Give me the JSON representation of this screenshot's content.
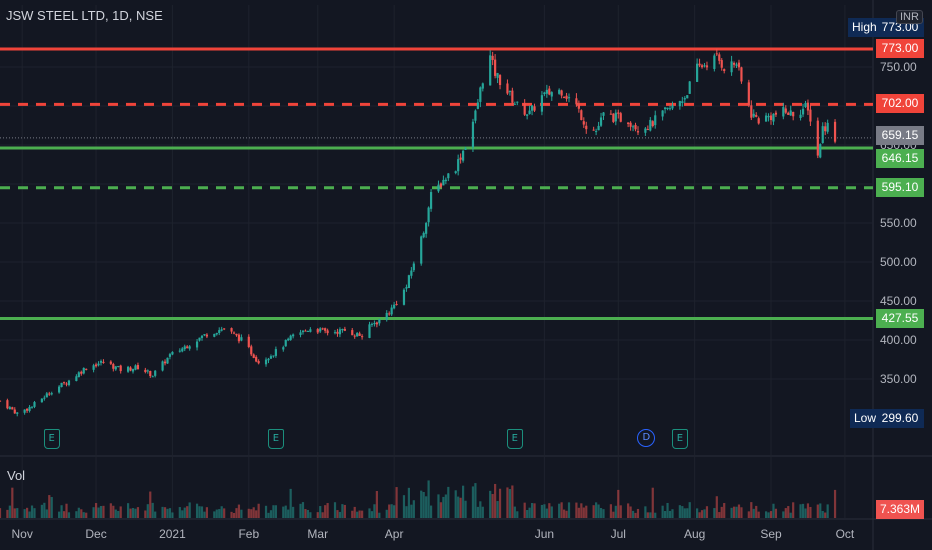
{
  "header": {
    "title": "JSW STEEL LTD, 1D, NSE",
    "currency": "INR"
  },
  "volume_pane": {
    "label": "Vol"
  },
  "levels": [
    {
      "value": 773.0,
      "label": "773.00",
      "color": "#f0443a",
      "style": "solid"
    },
    {
      "value": 702.0,
      "label": "702.00",
      "color": "#f0443a",
      "style": "dashed"
    },
    {
      "value": 646.15,
      "label": "646.15",
      "color": "#4caf50",
      "style": "solid"
    },
    {
      "value": 595.1,
      "label": "595.10",
      "color": "#4caf50",
      "style": "dashed"
    },
    {
      "value": 427.55,
      "label": "427.55",
      "color": "#4caf50",
      "style": "solid"
    }
  ],
  "markers": {
    "high_label": "High",
    "high_value": "773.00",
    "low_label": "Low",
    "low_value": "299.60",
    "last_price": "659.15",
    "last_volume": "7.363M"
  },
  "events": [
    {
      "type": "E",
      "date": "2020-11-13"
    },
    {
      "type": "E",
      "date": "2021-02-12"
    },
    {
      "type": "E",
      "date": "2021-05-20"
    },
    {
      "type": "D",
      "date": "2021-07-12"
    },
    {
      "type": "E",
      "date": "2021-07-26"
    }
  ],
  "colors": {
    "background": "#131722",
    "up": "#26a69a",
    "down": "#ef5350",
    "grid": "#1e222d",
    "high_low_bg": "#0f2a55"
  },
  "chart_data": {
    "type": "candlestick",
    "title": "JSW STEEL LTD, 1D, NSE",
    "x_range": [
      "2020-10-23",
      "2021-10-12"
    ],
    "ylim": [
      300,
      773
    ],
    "y_ticks": [
      350,
      400,
      450,
      500,
      550,
      600,
      650,
      700,
      750
    ],
    "y_tick_labels": [
      "350.00",
      "400.00",
      "450.00",
      "500.00",
      "550.00",
      "600.00",
      "650.00",
      "700.00",
      "750.00"
    ],
    "x_ticks": [
      {
        "date": "2020-11-01",
        "label": "Nov"
      },
      {
        "date": "2020-12-01",
        "label": "Dec"
      },
      {
        "date": "2021-01-01",
        "label": "2021"
      },
      {
        "date": "2021-02-01",
        "label": "Feb"
      },
      {
        "date": "2021-03-01",
        "label": "Mar"
      },
      {
        "date": "2021-04-01",
        "label": "Apr"
      },
      {
        "date": "2021-06-01",
        "label": "Jun"
      },
      {
        "date": "2021-07-01",
        "label": "Jul"
      },
      {
        "date": "2021-08-01",
        "label": "Aug"
      },
      {
        "date": "2021-09-01",
        "label": "Sep"
      },
      {
        "date": "2021-10-01",
        "label": "Oct"
      }
    ],
    "price_path": [
      [
        "2020-10-23",
        322
      ],
      [
        "2020-10-30",
        306
      ],
      [
        "2020-11-05",
        315
      ],
      [
        "2020-11-13",
        335
      ],
      [
        "2020-11-20",
        348
      ],
      [
        "2020-11-27",
        365
      ],
      [
        "2020-12-04",
        372
      ],
      [
        "2020-12-11",
        362
      ],
      [
        "2020-12-18",
        365
      ],
      [
        "2020-12-24",
        355
      ],
      [
        "2020-12-31",
        380
      ],
      [
        "2021-01-08",
        395
      ],
      [
        "2021-01-15",
        408
      ],
      [
        "2021-01-22",
        415
      ],
      [
        "2021-01-29",
        400
      ],
      [
        "2021-02-05",
        372
      ],
      [
        "2021-02-12",
        385
      ],
      [
        "2021-02-19",
        405
      ],
      [
        "2021-02-26",
        415
      ],
      [
        "2021-03-05",
        410
      ],
      [
        "2021-03-12",
        412
      ],
      [
        "2021-03-19",
        405
      ],
      [
        "2021-03-23",
        420
      ],
      [
        "2021-03-26",
        425
      ],
      [
        "2021-03-31",
        440
      ],
      [
        "2021-04-06",
        468
      ],
      [
        "2021-04-09",
        500
      ],
      [
        "2021-04-13",
        540
      ],
      [
        "2021-04-16",
        585
      ],
      [
        "2021-04-21",
        605
      ],
      [
        "2021-04-26",
        622
      ],
      [
        "2021-04-30",
        650
      ],
      [
        "2021-05-04",
        690
      ],
      [
        "2021-05-07",
        735
      ],
      [
        "2021-05-10",
        762
      ],
      [
        "2021-05-12",
        742
      ],
      [
        "2021-05-17",
        718
      ],
      [
        "2021-05-21",
        700
      ],
      [
        "2021-05-26",
        690
      ],
      [
        "2021-05-31",
        712
      ],
      [
        "2021-06-04",
        718
      ],
      [
        "2021-06-08",
        720
      ],
      [
        "2021-06-14",
        700
      ],
      [
        "2021-06-18",
        675
      ],
      [
        "2021-06-22",
        668
      ],
      [
        "2021-06-25",
        688
      ],
      [
        "2021-06-30",
        685
      ],
      [
        "2021-07-05",
        682
      ],
      [
        "2021-07-09",
        672
      ],
      [
        "2021-07-14",
        676
      ],
      [
        "2021-07-19",
        690
      ],
      [
        "2021-07-23",
        698
      ],
      [
        "2021-07-28",
        712
      ],
      [
        "2021-08-02",
        748
      ],
      [
        "2021-08-06",
        755
      ],
      [
        "2021-08-10",
        762
      ],
      [
        "2021-08-13",
        750
      ],
      [
        "2021-08-18",
        755
      ],
      [
        "2021-08-20",
        730
      ],
      [
        "2021-08-24",
        690
      ],
      [
        "2021-08-27",
        682
      ],
      [
        "2021-09-01",
        687
      ],
      [
        "2021-09-06",
        692
      ],
      [
        "2021-09-10",
        690
      ],
      [
        "2021-09-15",
        698
      ],
      [
        "2021-09-17",
        685
      ],
      [
        "2021-09-20",
        636
      ],
      [
        "2021-09-22",
        672
      ],
      [
        "2021-09-24",
        675
      ],
      [
        "2021-09-27",
        659
      ]
    ],
    "volume_ylim": [
      0,
      12
    ],
    "volume_unit": "M"
  }
}
